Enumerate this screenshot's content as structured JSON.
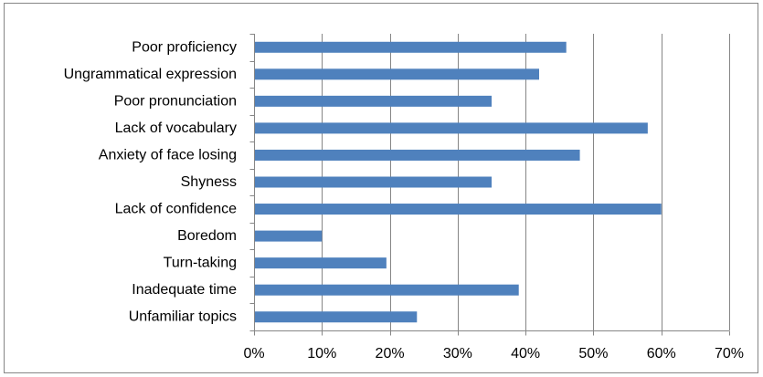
{
  "chart_data": {
    "type": "bar",
    "orientation": "horizontal",
    "title": "",
    "xlabel": "",
    "ylabel": "",
    "categories": [
      "Poor proficiency",
      "Ungrammatical expression",
      "Poor pronunciation",
      "Lack of vocabulary",
      "Anxiety of face losing",
      "Shyness",
      "Lack of confidence",
      "Boredom",
      "Turn-taking",
      "Inadequate time",
      "Unfamiliar topics"
    ],
    "values": [
      0.46,
      0.42,
      0.35,
      0.58,
      0.48,
      0.35,
      0.6,
      0.1,
      0.195,
      0.39,
      0.24
    ],
    "xlim": [
      0,
      0.7
    ],
    "xticks": [
      0,
      0.1,
      0.2,
      0.3,
      0.4,
      0.5,
      0.6,
      0.7
    ],
    "xtick_labels": [
      "0%",
      "10%",
      "20%",
      "30%",
      "40%",
      "50%",
      "60%",
      "70%"
    ],
    "grid": "vertical",
    "legend": "none",
    "bar_color": "#4f81bd",
    "grid_color": "#868686",
    "border_color": "#868686"
  }
}
